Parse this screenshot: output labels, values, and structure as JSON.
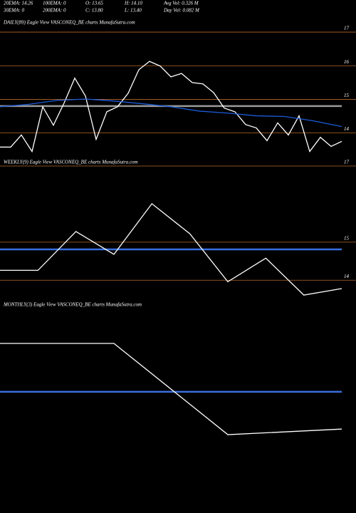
{
  "header": {
    "rows": [
      [
        "20EMA: 14.26",
        "100EMA: 0",
        "O: 13.65",
        "H: 14.10",
        "Avg Vol: 0.326  M"
      ],
      [
        "30EMA: 0",
        "200EMA: 0",
        "C: 13.80",
        "L: 13.40",
        "Day Vol: 0.082  M"
      ]
    ]
  },
  "chart_data": [
    {
      "type": "line",
      "title": "DAILY(89) Eagle  View  VASCONEQ_BE charts MunafaSutra.com",
      "ylim": [
        13.25,
        17.15
      ],
      "yticks": [
        14,
        15,
        16,
        17
      ],
      "grid": true,
      "grid_color": "#b86a2c",
      "series": [
        {
          "color": "#ffffff",
          "values": [
            13.58,
            13.58,
            13.94,
            13.45,
            14.78,
            14.23,
            14.89,
            15.63,
            15.1,
            13.81,
            14.63,
            14.78,
            15.18,
            15.88,
            16.13,
            15.99,
            15.67,
            15.77,
            15.5,
            15.46,
            15.2,
            14.74,
            14.63,
            14.25,
            14.15,
            13.77,
            14.3,
            13.94,
            14.51,
            13.45,
            13.87,
            13.6,
            13.75
          ]
        },
        {
          "color": "#1e5bd8",
          "values": [
            14.78,
            14.85,
            14.97,
            15.01,
            14.95,
            14.87,
            14.78,
            14.65,
            14.59,
            14.51,
            14.49,
            14.36,
            14.19
          ]
        }
      ],
      "hlines": [
        {
          "value": 14.8,
          "color": "#9a9a9a"
        }
      ]
    },
    {
      "type": "line",
      "title": "WEEKLY(9) Eagle  View  VASCONEQ_BE charts MunafaSutra.com",
      "ylim": [
        13.5,
        17.0
      ],
      "yticks": [
        14,
        15,
        17
      ],
      "grid": true,
      "grid_color": "#b86a2c",
      "series": [
        {
          "color": "#ffffff",
          "values": [
            14.26,
            14.26,
            15.28,
            14.68,
            16.01,
            15.22,
            13.96,
            14.58,
            13.61,
            13.78
          ]
        }
      ],
      "hlines": [
        {
          "value": 14.81,
          "color": "#3b6fe0"
        }
      ]
    },
    {
      "type": "line",
      "title": "MONTHLY(3) Eagle  View  VASCONEQ_BE charts MunafaSutra.com",
      "ylim": [
        11,
        18
      ],
      "yticks": [],
      "grid": false,
      "grid_color": "#b86a2c",
      "series": [
        {
          "color": "#ffffff",
          "values": [
            16.55,
            16.55,
            13.29,
            13.49
          ]
        }
      ],
      "hlines": [
        {
          "value": 14.82,
          "color": "#3b6fe0"
        }
      ]
    }
  ]
}
